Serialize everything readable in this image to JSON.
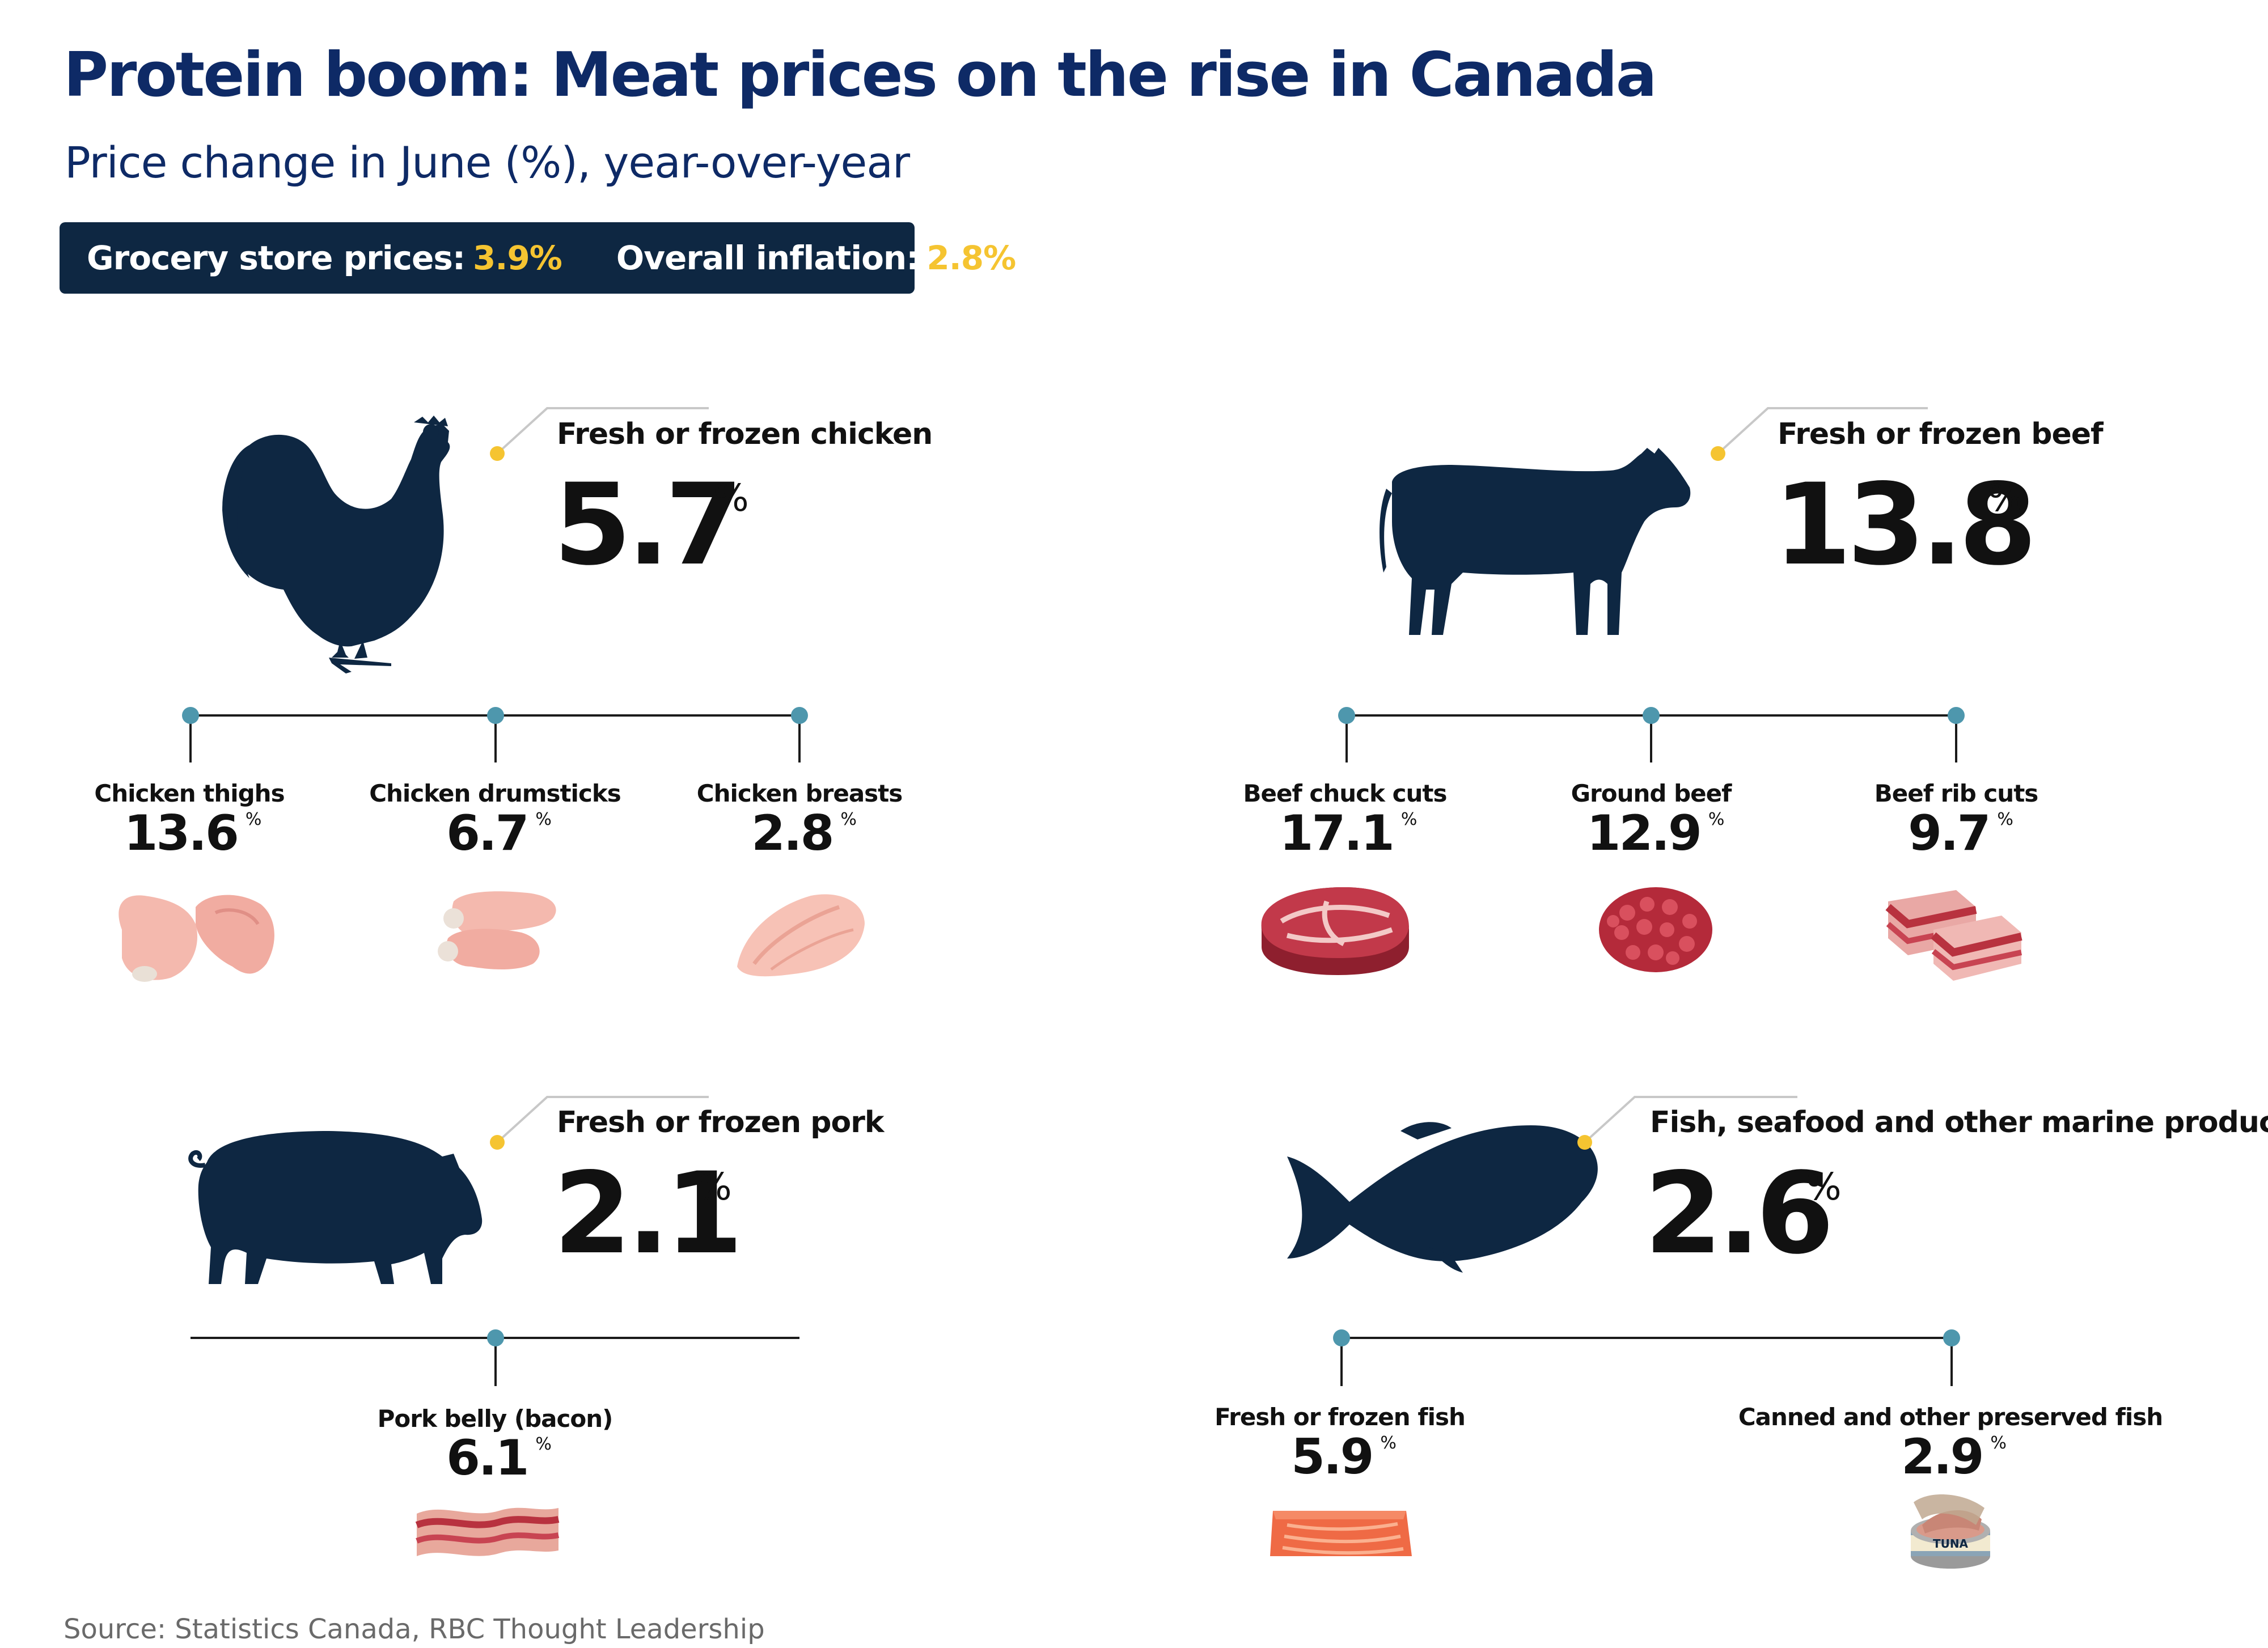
{
  "title": "Protein boom: Meat prices on the rise in Canada",
  "subtitle": "Price change in June (%), year-over-year",
  "summary": {
    "grocery_label": "Grocery store prices:",
    "grocery_value": "3.9%",
    "inflation_label": "Overall inflation:",
    "inflation_value": "2.8%"
  },
  "colors": {
    "navy": "#0e2742",
    "title_blue": "#0e2a66",
    "accent_yellow": "#f5c431",
    "dot_teal": "#4e97ad"
  },
  "source": "Source: Statistics Canada, RBC Thought Leadership",
  "chart_data": {
    "type": "table",
    "unit": "%",
    "groups": [
      {
        "category": "Fresh or frozen chicken",
        "value": 5.7,
        "value_text": "5.7",
        "icon": "chicken-silhouette-icon",
        "items": [
          {
            "label": "Chicken thighs",
            "value": 13.6,
            "value_text": "13.6",
            "icon": "chicken-thighs-icon"
          },
          {
            "label": "Chicken drumsticks",
            "value": 6.7,
            "value_text": "6.7",
            "icon": "chicken-drumsticks-icon"
          },
          {
            "label": "Chicken breasts",
            "value": 2.8,
            "value_text": "2.8",
            "icon": "chicken-breasts-icon"
          }
        ]
      },
      {
        "category": "Fresh or frozen beef",
        "value": 13.8,
        "value_text": "13.8",
        "icon": "cow-silhouette-icon",
        "items": [
          {
            "label": "Beef chuck cuts",
            "value": 17.1,
            "value_text": "17.1",
            "icon": "beef-steak-icon"
          },
          {
            "label": "Ground beef",
            "value": 12.9,
            "value_text": "12.9",
            "icon": "ground-beef-icon"
          },
          {
            "label": "Beef rib cuts",
            "value": 9.7,
            "value_text": "9.7",
            "icon": "beef-rib-icon"
          }
        ]
      },
      {
        "category": "Fresh or frozen pork",
        "value": 2.1,
        "value_text": "2.1",
        "icon": "pig-silhouette-icon",
        "items": [
          {
            "label": "Pork belly (bacon)",
            "value": 6.1,
            "value_text": "6.1",
            "icon": "bacon-icon"
          }
        ]
      },
      {
        "category": "Fish, seafood and other marine products",
        "value": 2.6,
        "value_text": "2.6",
        "icon": "fish-silhouette-icon",
        "items": [
          {
            "label": "Fresh or frozen fish",
            "value": 5.9,
            "value_text": "5.9",
            "icon": "salmon-fillet-icon"
          },
          {
            "label": "Canned and other preserved fish",
            "value": 2.9,
            "value_text": "2.9",
            "icon": "tuna-can-icon"
          }
        ]
      }
    ],
    "tuna_label": "TUNA"
  }
}
